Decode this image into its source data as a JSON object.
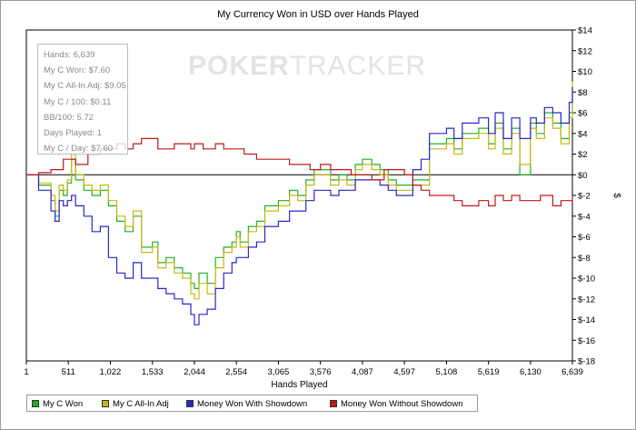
{
  "chart_data": {
    "type": "line",
    "title": "My Currency Won in USD over Hands Played",
    "xlabel": "Hands Played",
    "ylabel": "$",
    "xlim": [
      1,
      6639
    ],
    "ylim": [
      -18,
      14
    ],
    "x_ticks": [
      1,
      511,
      1022,
      1533,
      2044,
      2554,
      3065,
      3576,
      4087,
      4597,
      5108,
      5619,
      6130,
      6639
    ],
    "x_tick_labels": [
      "1",
      "511",
      "1,022",
      "1,533",
      "2,044",
      "2,554",
      "3,065",
      "3,576",
      "4,087",
      "4,597",
      "5,108",
      "5,619",
      "6,130",
      "6,639"
    ],
    "y_ticks": [
      14,
      12,
      10,
      8,
      6,
      4,
      2,
      0,
      -2,
      -4,
      -6,
      -8,
      -10,
      -12,
      -14,
      -16,
      -18
    ],
    "y_tick_labels": [
      "$14",
      "$12",
      "$10",
      "$8",
      "$6",
      "$4",
      "$2",
      "$0",
      "$-2",
      "$-4",
      "$-6",
      "$-8",
      "$-10",
      "$-12",
      "$-14",
      "$-16",
      "$-18"
    ],
    "legend_position": "bottom",
    "grid": false,
    "series": [
      {
        "name": "My C Won",
        "color": "#22b022",
        "x": [
          1,
          150,
          300,
          350,
          400,
          450,
          500,
          550,
          600,
          700,
          800,
          900,
          1000,
          1100,
          1200,
          1300,
          1400,
          1533,
          1600,
          1700,
          1800,
          1900,
          2000,
          2044,
          2100,
          2200,
          2300,
          2400,
          2500,
          2554,
          2600,
          2700,
          2800,
          2900,
          3000,
          3065,
          3200,
          3300,
          3400,
          3500,
          3576,
          3700,
          3800,
          3900,
          4000,
          4087,
          4200,
          4300,
          4400,
          4500,
          4597,
          4700,
          4800,
          4900,
          5000,
          5108,
          5200,
          5300,
          5400,
          5500,
          5619,
          5700,
          5800,
          5900,
          6000,
          6130,
          6200,
          6300,
          6400,
          6500,
          6600,
          6639
        ],
        "y": [
          0,
          -1,
          -2.5,
          -4,
          -1.5,
          -2,
          -0.8,
          1.5,
          -0.5,
          -1.5,
          -2,
          -1.5,
          -3,
          -4.5,
          -5.5,
          -4,
          -7,
          -6.5,
          -8.5,
          -8,
          -9,
          -9.5,
          -10.5,
          -11,
          -9.5,
          -10.5,
          -8,
          -7,
          -6.5,
          -5.5,
          -6.5,
          -5,
          -4.5,
          -3,
          -3,
          -2.5,
          -1.5,
          -2,
          -0.5,
          0.5,
          0.5,
          -0.5,
          0,
          -0.5,
          1,
          1.5,
          1,
          0.5,
          -0.5,
          -1,
          -1,
          -0.5,
          -0.5,
          3,
          3,
          3.5,
          2.5,
          4,
          4,
          4.5,
          3,
          5,
          2.5,
          4.5,
          0,
          5,
          4,
          6,
          5,
          3.5,
          6,
          8
        ]
      },
      {
        "name": "My C All-In Adj",
        "color": "#c8b814",
        "x": [
          1,
          150,
          300,
          350,
          400,
          450,
          500,
          550,
          600,
          700,
          800,
          900,
          1000,
          1100,
          1200,
          1300,
          1400,
          1533,
          1600,
          1700,
          1800,
          1900,
          2000,
          2044,
          2100,
          2200,
          2300,
          2400,
          2500,
          2554,
          2600,
          2700,
          2800,
          2900,
          3000,
          3065,
          3200,
          3300,
          3400,
          3500,
          3576,
          3700,
          3800,
          3900,
          4000,
          4087,
          4200,
          4300,
          4400,
          4500,
          4597,
          4700,
          4800,
          4900,
          5000,
          5108,
          5200,
          5300,
          5400,
          5500,
          5619,
          5700,
          5800,
          5900,
          6000,
          6130,
          6200,
          6300,
          6400,
          6500,
          6600,
          6639
        ],
        "y": [
          0,
          -0.8,
          -2,
          -3.5,
          -1,
          -1.5,
          -0.5,
          2,
          0,
          -1,
          -1.5,
          -1,
          -2.5,
          -4,
          -5,
          -3.5,
          -7.5,
          -7,
          -9,
          -8.5,
          -9.5,
          -10,
          -11.5,
          -12,
          -10.5,
          -11.5,
          -9,
          -7.5,
          -7,
          -6,
          -7,
          -5.5,
          -5,
          -3.5,
          -3.5,
          -3,
          -2,
          -2.5,
          -1,
          0,
          0,
          -1,
          -0.5,
          -1,
          0.5,
          1,
          0.5,
          0,
          -1,
          -1.5,
          -1.5,
          -1,
          -1,
          2.5,
          2.5,
          3,
          2,
          3.5,
          3.5,
          4,
          2.5,
          4.5,
          2,
          4,
          1,
          4.5,
          3.5,
          5.5,
          4.5,
          3,
          5.5,
          9
        ]
      },
      {
        "name": "Money Won With Showdown",
        "color": "#2828c8",
        "x": [
          1,
          150,
          300,
          350,
          400,
          450,
          500,
          550,
          600,
          700,
          800,
          900,
          1000,
          1100,
          1200,
          1300,
          1400,
          1533,
          1600,
          1700,
          1800,
          1900,
          2000,
          2044,
          2100,
          2200,
          2300,
          2400,
          2500,
          2554,
          2600,
          2700,
          2800,
          2900,
          3000,
          3065,
          3200,
          3300,
          3400,
          3500,
          3576,
          3700,
          3800,
          3900,
          4000,
          4087,
          4200,
          4300,
          4400,
          4500,
          4597,
          4700,
          4800,
          4900,
          5000,
          5108,
          5200,
          5300,
          5400,
          5500,
          5619,
          5700,
          5800,
          5900,
          6000,
          6130,
          6200,
          6300,
          6400,
          6500,
          6600,
          6639
        ],
        "y": [
          0,
          -1.5,
          -3.5,
          -4.5,
          -2.5,
          -3,
          -2.5,
          -2,
          -3,
          -4,
          -5.5,
          -5,
          -8,
          -9.5,
          -10,
          -8.5,
          -10,
          -10,
          -11,
          -11.5,
          -12,
          -12.5,
          -13.5,
          -14.5,
          -13.5,
          -13,
          -11,
          -9.5,
          -8.5,
          -8,
          -8,
          -7,
          -6.5,
          -5,
          -5,
          -4.5,
          -3.5,
          -3.5,
          -2.5,
          -1.5,
          -1.5,
          -2,
          -1.5,
          -1.5,
          -0.5,
          -0.5,
          -0.5,
          -1,
          -1.5,
          -2,
          -2,
          0.5,
          1.5,
          4,
          4,
          4.5,
          3.5,
          5,
          5,
          5.5,
          4,
          6,
          3.5,
          5.5,
          3.5,
          5.5,
          5,
          6.5,
          6,
          5,
          7,
          8.5
        ]
      },
      {
        "name": "Money Won Without Showdown",
        "color": "#c01818",
        "x": [
          1,
          150,
          300,
          450,
          600,
          750,
          900,
          1000,
          1100,
          1200,
          1300,
          1400,
          1533,
          1600,
          1700,
          1800,
          1900,
          2000,
          2044,
          2150,
          2300,
          2400,
          2554,
          2650,
          2800,
          2900,
          3065,
          3200,
          3350,
          3450,
          3576,
          3700,
          3850,
          3950,
          4087,
          4200,
          4350,
          4450,
          4597,
          4700,
          4800,
          4900,
          5000,
          5108,
          5200,
          5300,
          5400,
          5500,
          5619,
          5700,
          5800,
          5900,
          6000,
          6130,
          6250,
          6400,
          6500,
          6600,
          6639
        ],
        "y": [
          0,
          0.2,
          0.5,
          1.5,
          1,
          2,
          2.5,
          2.5,
          3,
          2.5,
          3,
          3.5,
          3.5,
          2.5,
          2.5,
          3,
          3,
          2.5,
          3,
          2.5,
          3,
          2.5,
          2.5,
          2,
          1.5,
          1.5,
          1.5,
          1,
          1,
          0.5,
          1,
          0.5,
          0.5,
          0,
          0,
          -0.5,
          0.5,
          0.5,
          0,
          -1,
          -1.5,
          -2,
          -2,
          -2,
          -2.5,
          -3,
          -3,
          -2.5,
          -3,
          -2,
          -2.5,
          -2,
          -2.5,
          -2.5,
          -2,
          -3,
          -2.5,
          -2.5,
          -2
        ]
      }
    ],
    "stats_box": [
      "Hands: 6,639",
      "My C Won: $7.60",
      "My C All-In Adj: $9.05",
      "My C / 100: $0.11",
      "BB/100: 5.72",
      "Days Played: 1",
      "My C / Day: $7.60"
    ]
  },
  "watermark": {
    "bold": "POKER",
    "thin": "TRACKER"
  }
}
